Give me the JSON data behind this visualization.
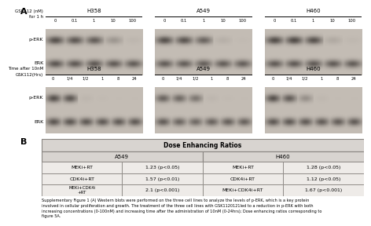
{
  "panel_A_label": "A",
  "panel_B_label": "B",
  "top_section": {
    "cell_lines": [
      "H358",
      "A549",
      "H460"
    ],
    "x_label_line1": "GSK112 (nM)",
    "x_label_line2": "for 1 h",
    "x_ticks": [
      "0",
      "0.1",
      "1",
      "10",
      "100"
    ],
    "row_labels": [
      "p-ERK",
      "ERK"
    ]
  },
  "bottom_section": {
    "cell_lines": [
      "H358",
      "A549",
      "H460"
    ],
    "x_label_line1": "Time after 10nM",
    "x_label_line2": "GSK112(Hrs)",
    "x_ticks": [
      "0",
      "1/4",
      "1/2",
      "1",
      "8",
      "24"
    ],
    "row_labels": [
      "p-ERK",
      "ERK"
    ]
  },
  "top_blots": [
    {
      "perk": [
        0.85,
        0.8,
        0.75,
        0.3,
        0.05
      ],
      "erk": [
        0.8,
        0.78,
        0.78,
        0.76,
        0.75
      ]
    },
    {
      "perk": [
        0.85,
        0.82,
        0.7,
        0.1,
        0.02
      ],
      "erk": [
        0.75,
        0.74,
        0.73,
        0.74,
        0.73
      ]
    },
    {
      "perk": [
        0.88,
        0.9,
        0.85,
        0.15,
        0.04
      ],
      "erk": [
        0.76,
        0.77,
        0.77,
        0.76,
        0.75
      ]
    }
  ],
  "bot_blots": [
    {
      "perk": [
        0.85,
        0.8,
        0.05,
        0.02,
        0.01,
        0.01
      ],
      "erk": [
        0.8,
        0.79,
        0.78,
        0.77,
        0.76,
        0.77
      ]
    },
    {
      "perk": [
        0.7,
        0.65,
        0.55,
        0.05,
        0.02,
        0.01
      ],
      "erk": [
        0.75,
        0.68,
        0.65,
        0.7,
        0.72,
        0.71
      ]
    },
    {
      "perk": [
        0.85,
        0.75,
        0.35,
        0.04,
        0.01,
        0.01
      ],
      "erk": [
        0.78,
        0.77,
        0.76,
        0.75,
        0.74,
        0.76
      ]
    }
  ],
  "table": {
    "title": "Dose Enhancing Ratios",
    "rows": [
      [
        "MEKi+RT",
        "1.23 (p<0.05)",
        "MEKi+RT",
        "1.28 (p<0.05)"
      ],
      [
        "CDK4i+RT",
        "1.57 (p<0.01)",
        "CDK4i+RT",
        "1.12 (p<0.05)"
      ],
      [
        "MEKi+CDK4i\n+RT",
        "2.1 (p<0.001)",
        "MEKi+CDK4i+RT",
        "1.67 (p<0.001)"
      ]
    ]
  },
  "caption": "Supplementary Figure 1 (A) Western blots were performed on the three cell lines to analyze the levels of p-ERK, which is a key protein\ninvolved in cellular proliferation and growth. The treatment of the three cell lines with GSK1120121led to a reduction in p-ERK with both\nincreasing concentrations (0-100nM) and increasing time after the administration of 10nM (0-24hrs); Dose enhancing ratios corresponding to\nfigure 5A.",
  "blot_bg": "#c4bdb5",
  "table_header_bg": "#d8d4d0",
  "table_cell_bg": "#eeebe8",
  "table_border": "#888480",
  "fig_bg": "#ffffff"
}
